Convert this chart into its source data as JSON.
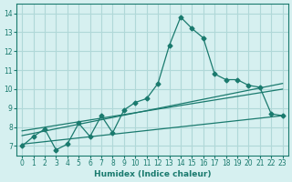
{
  "xlabel": "Humidex (Indice chaleur)",
  "ylabel": "",
  "bg_color": "#d6f0f0",
  "grid_color": "#b0d8d8",
  "line_color": "#1a7a6e",
  "xlim": [
    -0.5,
    23.5
  ],
  "ylim": [
    6.5,
    14.5
  ],
  "xticks": [
    0,
    1,
    2,
    3,
    4,
    5,
    6,
    7,
    8,
    9,
    10,
    11,
    12,
    13,
    14,
    15,
    16,
    17,
    18,
    19,
    20,
    21,
    22,
    23
  ],
  "yticks": [
    7,
    8,
    9,
    10,
    11,
    12,
    13,
    14
  ],
  "main_x": [
    0,
    1,
    2,
    3,
    4,
    5,
    6,
    7,
    8,
    9,
    10,
    11,
    12,
    13,
    14,
    15,
    16,
    17,
    18,
    19,
    20,
    21,
    22,
    23
  ],
  "main_y": [
    7.0,
    7.5,
    7.9,
    6.8,
    7.1,
    8.2,
    7.5,
    8.6,
    7.7,
    8.9,
    9.3,
    9.5,
    10.3,
    12.3,
    13.8,
    13.2,
    12.7,
    10.8,
    10.5,
    10.5,
    10.2,
    10.1,
    8.7,
    8.6
  ],
  "trend1_x": [
    0,
    23
  ],
  "trend1_y": [
    7.55,
    10.3
  ],
  "trend2_x": [
    0,
    23
  ],
  "trend2_y": [
    7.1,
    8.6
  ],
  "trend3_x": [
    0,
    23
  ],
  "trend3_y": [
    7.8,
    10.0
  ]
}
